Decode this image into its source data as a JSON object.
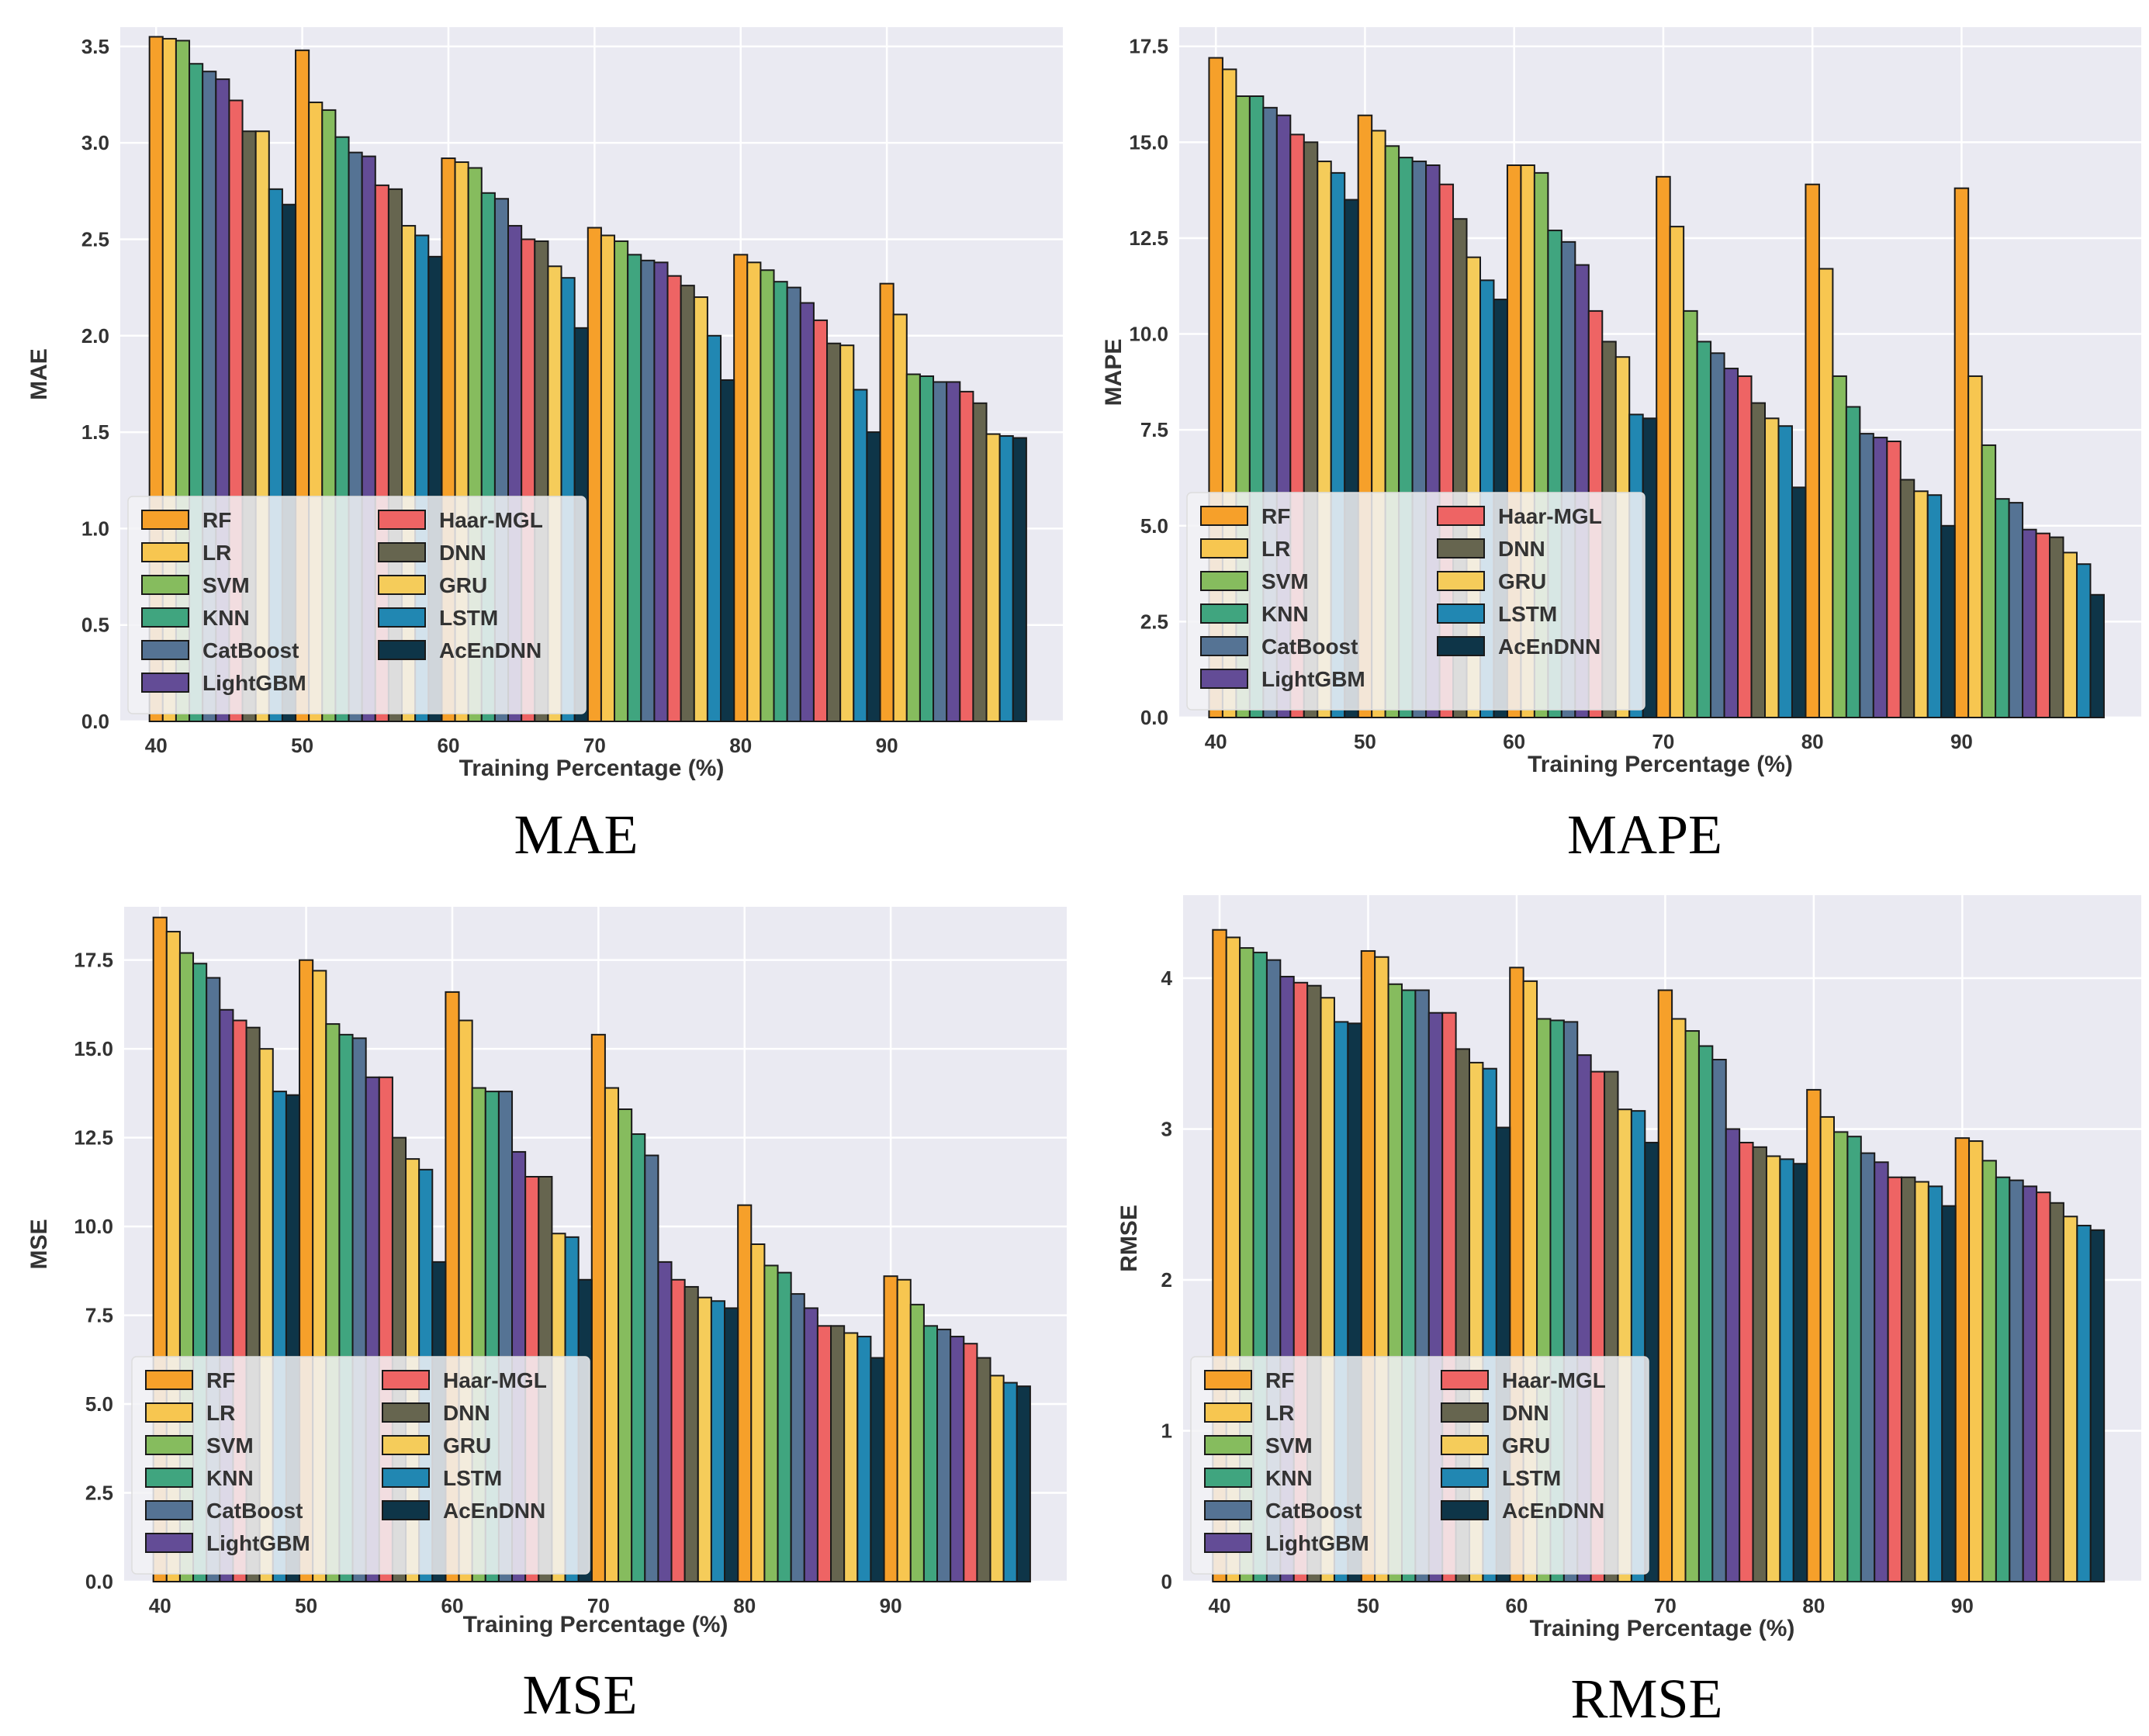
{
  "chart_data": [
    {
      "type": "bar",
      "id": "mae",
      "caption": "MAE",
      "xlabel": "Training Percentage (%)",
      "ylabel": "MAE",
      "ylim": [
        0,
        3.6
      ],
      "yticks": [
        0.0,
        0.5,
        1.0,
        1.5,
        2.0,
        2.5,
        3.0,
        3.5
      ],
      "tick_decimals": 1,
      "categories": [
        "40",
        "50",
        "60",
        "70",
        "80",
        "90"
      ],
      "series": [
        {
          "name": "RF",
          "values": [
            3.55,
            3.48,
            2.92,
            2.56,
            2.42,
            2.27
          ]
        },
        {
          "name": "LR",
          "values": [
            3.54,
            3.21,
            2.9,
            2.52,
            2.38,
            2.11
          ]
        },
        {
          "name": "SVM",
          "values": [
            3.53,
            3.17,
            2.87,
            2.49,
            2.34,
            1.8
          ]
        },
        {
          "name": "KNN",
          "values": [
            3.41,
            3.03,
            2.74,
            2.42,
            2.28,
            1.79
          ]
        },
        {
          "name": "CatBoost",
          "values": [
            3.37,
            2.95,
            2.71,
            2.39,
            2.25,
            1.76
          ]
        },
        {
          "name": "LightGBM",
          "values": [
            3.33,
            2.93,
            2.57,
            2.38,
            2.17,
            1.76
          ]
        },
        {
          "name": "Haar-MGL",
          "values": [
            3.22,
            2.78,
            2.5,
            2.31,
            2.08,
            1.71
          ]
        },
        {
          "name": "DNN",
          "values": [
            3.06,
            2.76,
            2.49,
            2.26,
            1.96,
            1.65
          ]
        },
        {
          "name": "GRU",
          "values": [
            3.06,
            2.57,
            2.36,
            2.2,
            1.95,
            1.49
          ]
        },
        {
          "name": "LSTM",
          "values": [
            2.76,
            2.52,
            2.3,
            2.0,
            1.72,
            1.48
          ]
        },
        {
          "name": "AcEnDNN",
          "values": [
            2.68,
            2.41,
            2.04,
            1.77,
            1.5,
            1.47
          ]
        }
      ]
    },
    {
      "type": "bar",
      "id": "mape",
      "caption": "MAPE",
      "xlabel": "Training Percentage (%)",
      "ylabel": "MAPE",
      "ylim": [
        0,
        18
      ],
      "yticks": [
        0.0,
        2.5,
        5.0,
        7.5,
        10.0,
        12.5,
        15.0,
        17.5
      ],
      "tick_decimals": 1,
      "categories": [
        "40",
        "50",
        "60",
        "70",
        "80",
        "90"
      ],
      "series": [
        {
          "name": "RF",
          "values": [
            17.2,
            15.7,
            14.4,
            14.1,
            13.9,
            13.8
          ]
        },
        {
          "name": "LR",
          "values": [
            16.9,
            15.3,
            14.4,
            12.8,
            11.7,
            8.9
          ]
        },
        {
          "name": "SVM",
          "values": [
            16.2,
            14.9,
            14.2,
            10.6,
            8.9,
            7.1
          ]
        },
        {
          "name": "KNN",
          "values": [
            16.2,
            14.6,
            12.7,
            9.8,
            8.1,
            5.7
          ]
        },
        {
          "name": "CatBoost",
          "values": [
            15.9,
            14.5,
            12.4,
            9.5,
            7.4,
            5.6
          ]
        },
        {
          "name": "LightGBM",
          "values": [
            15.7,
            14.4,
            11.8,
            9.1,
            7.3,
            4.9
          ]
        },
        {
          "name": "Haar-MGL",
          "values": [
            15.2,
            13.9,
            10.6,
            8.9,
            7.2,
            4.8
          ]
        },
        {
          "name": "DNN",
          "values": [
            15.0,
            13.0,
            9.8,
            8.2,
            6.2,
            4.7
          ]
        },
        {
          "name": "GRU",
          "values": [
            14.5,
            12.0,
            9.4,
            7.8,
            5.9,
            4.3
          ]
        },
        {
          "name": "LSTM",
          "values": [
            14.2,
            11.4,
            7.9,
            7.6,
            5.8,
            4.0
          ]
        },
        {
          "name": "AcEnDNN",
          "values": [
            13.5,
            10.9,
            7.8,
            6.0,
            5.0,
            3.2
          ]
        }
      ]
    },
    {
      "type": "bar",
      "id": "mse",
      "caption": "MSE",
      "xlabel": "Training Percentage (%)",
      "ylabel": "MSE",
      "ylim": [
        0,
        19.0
      ],
      "yticks": [
        0.0,
        2.5,
        5.0,
        7.5,
        10.0,
        12.5,
        15.0,
        17.5
      ],
      "tick_decimals": 1,
      "categories": [
        "40",
        "50",
        "60",
        "70",
        "80",
        "90"
      ],
      "series": [
        {
          "name": "RF",
          "values": [
            18.7,
            17.5,
            16.6,
            15.4,
            10.6,
            8.6
          ]
        },
        {
          "name": "LR",
          "values": [
            18.3,
            17.2,
            15.8,
            13.9,
            9.5,
            8.5
          ]
        },
        {
          "name": "SVM",
          "values": [
            17.7,
            15.7,
            13.9,
            13.3,
            8.9,
            7.8
          ]
        },
        {
          "name": "KNN",
          "values": [
            17.4,
            15.4,
            13.8,
            12.6,
            8.7,
            7.2
          ]
        },
        {
          "name": "CatBoost",
          "values": [
            17.0,
            15.3,
            13.8,
            12.0,
            8.1,
            7.1
          ]
        },
        {
          "name": "LightGBM",
          "values": [
            16.1,
            14.2,
            12.1,
            9.0,
            7.7,
            6.9
          ]
        },
        {
          "name": "Haar-MGL",
          "values": [
            15.8,
            14.2,
            11.4,
            8.5,
            7.2,
            6.7
          ]
        },
        {
          "name": "DNN",
          "values": [
            15.6,
            12.5,
            11.4,
            8.3,
            7.2,
            6.3
          ]
        },
        {
          "name": "GRU",
          "values": [
            15.0,
            11.9,
            9.8,
            8.0,
            7.0,
            5.8
          ]
        },
        {
          "name": "LSTM",
          "values": [
            13.8,
            11.6,
            9.7,
            7.9,
            6.9,
            5.6
          ]
        },
        {
          "name": "AcEnDNN",
          "values": [
            13.7,
            9.0,
            8.5,
            7.7,
            6.3,
            5.5
          ]
        }
      ]
    },
    {
      "type": "bar",
      "id": "rmse",
      "caption": "RMSE",
      "xlabel": "Training Percentage (%)",
      "ylabel": "RMSE",
      "ylim": [
        0,
        4.55
      ],
      "yticks": [
        0,
        1,
        2,
        3,
        4
      ],
      "tick_decimals": 0,
      "categories": [
        "40",
        "50",
        "60",
        "70",
        "80",
        "90"
      ],
      "series": [
        {
          "name": "RF",
          "values": [
            4.32,
            4.18,
            4.07,
            3.92,
            3.26,
            2.94
          ]
        },
        {
          "name": "LR",
          "values": [
            4.27,
            4.14,
            3.98,
            3.73,
            3.08,
            2.92
          ]
        },
        {
          "name": "SVM",
          "values": [
            4.2,
            3.96,
            3.73,
            3.65,
            2.98,
            2.79
          ]
        },
        {
          "name": "KNN",
          "values": [
            4.17,
            3.92,
            3.72,
            3.55,
            2.95,
            2.68
          ]
        },
        {
          "name": "CatBoost",
          "values": [
            4.12,
            3.92,
            3.71,
            3.46,
            2.84,
            2.66
          ]
        },
        {
          "name": "LightGBM",
          "values": [
            4.01,
            3.77,
            3.49,
            3.0,
            2.78,
            2.62
          ]
        },
        {
          "name": "Haar-MGL",
          "values": [
            3.97,
            3.77,
            3.38,
            2.91,
            2.68,
            2.58
          ]
        },
        {
          "name": "DNN",
          "values": [
            3.95,
            3.53,
            3.38,
            2.88,
            2.68,
            2.51
          ]
        },
        {
          "name": "GRU",
          "values": [
            3.87,
            3.44,
            3.13,
            2.82,
            2.65,
            2.42
          ]
        },
        {
          "name": "LSTM",
          "values": [
            3.71,
            3.4,
            3.12,
            2.8,
            2.62,
            2.36
          ]
        },
        {
          "name": "AcEnDNN",
          "values": [
            3.7,
            3.01,
            2.91,
            2.77,
            2.49,
            2.33
          ]
        }
      ]
    }
  ],
  "colors": [
    "#f6a02a",
    "#f7c650",
    "#86bc5e",
    "#40a57f",
    "#557394",
    "#634c96",
    "#ee6464",
    "#66654f",
    "#f5cc5a",
    "#2187b2",
    "#0e3548"
  ]
}
